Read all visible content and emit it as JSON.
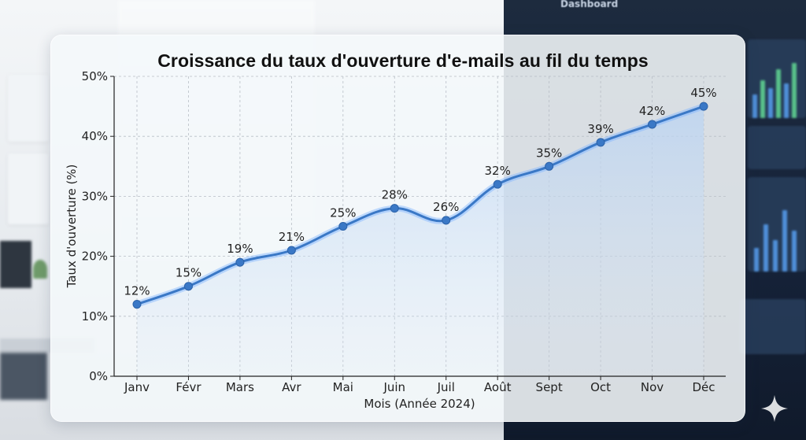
{
  "chart_data": {
    "type": "line",
    "title": "Croissance du taux d'ouverture d'e-mails au fil du temps",
    "xlabel": "Mois (Année 2024)",
    "ylabel": "Taux d'ouverture (%)",
    "categories": [
      "Janv",
      "Févr",
      "Mars",
      "Avr",
      "Mai",
      "Juin",
      "Juil",
      "Août",
      "Sept",
      "Oct",
      "Nov",
      "Déc"
    ],
    "series": [
      {
        "values": [
          12,
          15,
          19,
          21,
          25,
          28,
          26,
          32,
          35,
          39,
          42,
          45
        ],
        "data_labels": [
          "12%",
          "15%",
          "19%",
          "21%",
          "25%",
          "28%",
          "26%",
          "32%",
          "35%",
          "39%",
          "42%",
          "45%"
        ],
        "color": "#3a78c6"
      }
    ],
    "ylim": [
      0,
      50
    ],
    "yticks": [
      0,
      10,
      20,
      30,
      40,
      50
    ],
    "ytick_labels": [
      "0%",
      "10%",
      "20%",
      "30%",
      "40%",
      "50%"
    ],
    "grid": true,
    "area_fill": true
  },
  "background": {
    "dashboard_title": "Dashboard"
  }
}
